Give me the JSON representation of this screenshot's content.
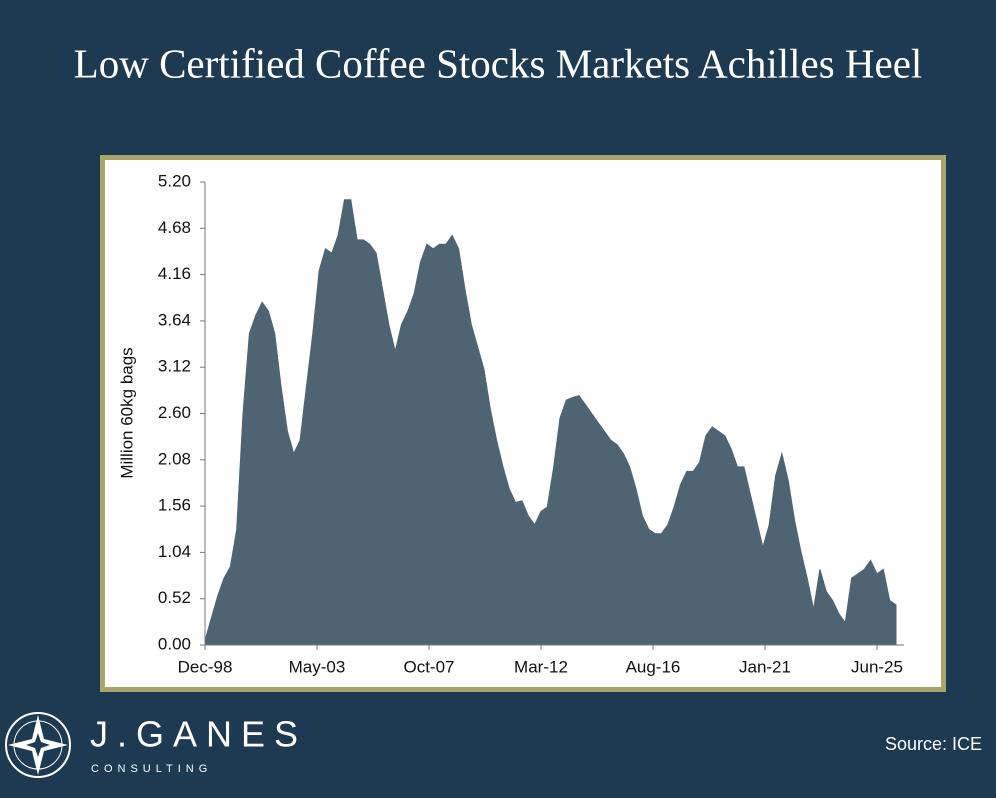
{
  "title": "Low Certified Coffee Stocks Markets Achilles Heel",
  "source": "Source: ICE",
  "logo": {
    "name": "J.GANES",
    "tagline": "CONSULTING"
  },
  "chart_data": {
    "type": "area",
    "y_label": "Million 60kg bags",
    "color": "#4f6473",
    "x": [
      "1998-12",
      "1999-03",
      "1999-06",
      "1999-09",
      "1999-12",
      "2000-03",
      "2000-06",
      "2000-09",
      "2000-12",
      "2001-03",
      "2001-06",
      "2001-09",
      "2001-12",
      "2002-03",
      "2002-06",
      "2002-09",
      "2002-12",
      "2003-03",
      "2003-06",
      "2003-09",
      "2003-12",
      "2004-03",
      "2004-06",
      "2004-09",
      "2004-12",
      "2005-03",
      "2005-06",
      "2005-09",
      "2005-12",
      "2006-03",
      "2006-06",
      "2006-09",
      "2006-12",
      "2007-03",
      "2007-06",
      "2007-09",
      "2007-12",
      "2008-03",
      "2008-06",
      "2008-09",
      "2008-12",
      "2009-03",
      "2009-06",
      "2009-09",
      "2009-12",
      "2010-03",
      "2010-06",
      "2010-09",
      "2010-12",
      "2011-03",
      "2011-06",
      "2011-09",
      "2011-12",
      "2012-03",
      "2012-06",
      "2012-09",
      "2012-12",
      "2013-03",
      "2013-06",
      "2013-09",
      "2013-12",
      "2014-03",
      "2014-06",
      "2014-09",
      "2014-12",
      "2015-03",
      "2015-06",
      "2015-09",
      "2015-12",
      "2016-03",
      "2016-06",
      "2016-09",
      "2016-12",
      "2017-03",
      "2017-06",
      "2017-09",
      "2017-12",
      "2018-03",
      "2018-06",
      "2018-09",
      "2018-12",
      "2019-03",
      "2019-06",
      "2019-09",
      "2019-12",
      "2020-03",
      "2020-06",
      "2020-09",
      "2020-12",
      "2021-03",
      "2021-06",
      "2021-09",
      "2021-12",
      "2022-03",
      "2022-06",
      "2022-09",
      "2022-12",
      "2023-03",
      "2023-06",
      "2023-09",
      "2023-12",
      "2024-03",
      "2024-06",
      "2024-09",
      "2024-12",
      "2025-03",
      "2025-06",
      "2025-09",
      "2025-12",
      "2026-03"
    ],
    "values": [
      0.05,
      0.3,
      0.55,
      0.75,
      0.88,
      1.3,
      2.6,
      3.5,
      3.7,
      3.85,
      3.75,
      3.5,
      2.9,
      2.4,
      2.15,
      2.3,
      2.9,
      3.5,
      4.2,
      4.45,
      4.4,
      4.6,
      5.0,
      5.0,
      4.55,
      4.55,
      4.5,
      4.4,
      4.0,
      3.6,
      3.3,
      3.6,
      3.75,
      3.95,
      4.3,
      4.5,
      4.45,
      4.5,
      4.5,
      4.6,
      4.45,
      4.0,
      3.6,
      3.35,
      3.1,
      2.65,
      2.3,
      2.0,
      1.75,
      1.6,
      1.62,
      1.45,
      1.35,
      1.5,
      1.55,
      2.0,
      2.55,
      2.75,
      2.78,
      2.8,
      2.7,
      2.6,
      2.5,
      2.4,
      2.3,
      2.25,
      2.15,
      2.0,
      1.75,
      1.45,
      1.3,
      1.25,
      1.25,
      1.35,
      1.55,
      1.8,
      1.95,
      1.95,
      2.05,
      2.35,
      2.45,
      2.4,
      2.35,
      2.2,
      2.0,
      2.0,
      1.7,
      1.4,
      1.1,
      1.35,
      1.9,
      2.15,
      1.85,
      1.4,
      1.05,
      0.75,
      0.4,
      0.85,
      0.6,
      0.5,
      0.35,
      0.25,
      0.75,
      0.8,
      0.85,
      0.95,
      0.8,
      0.85,
      0.5,
      0.45
    ],
    "xlim": [
      "1998-12",
      "2026-03"
    ],
    "xticks": [
      {
        "value": "1998-12",
        "label": "Dec-98"
      },
      {
        "value": "2003-05",
        "label": "May-03"
      },
      {
        "value": "2007-10",
        "label": "Oct-07"
      },
      {
        "value": "2012-03",
        "label": "Mar-12"
      },
      {
        "value": "2016-08",
        "label": "Aug-16"
      },
      {
        "value": "2021-01",
        "label": "Jan-21"
      },
      {
        "value": "2025-06",
        "label": "Jun-25"
      }
    ],
    "ylim": [
      0,
      5.2
    ],
    "yticks": [
      {
        "value": 0,
        "label": "0.00"
      },
      {
        "value": 0.52,
        "label": "0.52"
      },
      {
        "value": 1.04,
        "label": "1.04"
      },
      {
        "value": 1.56,
        "label": "1.56"
      },
      {
        "value": 2.08,
        "label": "2.08"
      },
      {
        "value": 2.6,
        "label": "2.60"
      },
      {
        "value": 3.12,
        "label": "3.12"
      },
      {
        "value": 3.64,
        "label": "3.64"
      },
      {
        "value": 4.16,
        "label": "4.16"
      },
      {
        "value": 4.68,
        "label": "4.68"
      },
      {
        "value": 5.2,
        "label": "5.20"
      }
    ]
  }
}
